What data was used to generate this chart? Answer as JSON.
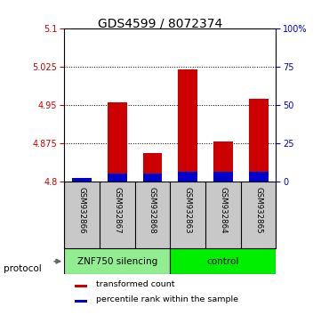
{
  "title": "GDS4599 / 8072374",
  "samples": [
    "GSM932866",
    "GSM932867",
    "GSM932868",
    "GSM932863",
    "GSM932864",
    "GSM932865"
  ],
  "red_values": [
    4.802,
    4.955,
    4.855,
    5.02,
    4.878,
    4.962
  ],
  "blue_values_pct": [
    2,
    5,
    5,
    6,
    6,
    6
  ],
  "ylim_left": [
    4.8,
    5.1
  ],
  "ylim_right": [
    0,
    100
  ],
  "yticks_left": [
    4.8,
    4.875,
    4.95,
    5.025,
    5.1
  ],
  "yticks_right": [
    0,
    25,
    50,
    75,
    100
  ],
  "ytick_labels_left": [
    "4.8",
    "4.875",
    "4.95",
    "5.025",
    "5.1"
  ],
  "ytick_labels_right": [
    "0",
    "25",
    "50",
    "75",
    "100%"
  ],
  "bar_base": 4.8,
  "bar_width": 0.55,
  "red_color": "#CC0000",
  "blue_color": "#0000CC",
  "bg_color_sample": "#C8C8C8",
  "title_fontsize": 10,
  "axis_label_color_left": "#CC0000",
  "axis_label_color_right": "#0000CC",
  "legend_items": [
    "transformed count",
    "percentile rank within the sample"
  ],
  "protocol_label": "protocol",
  "znf_color": "#90EE90",
  "ctrl_color": "#00EE00"
}
